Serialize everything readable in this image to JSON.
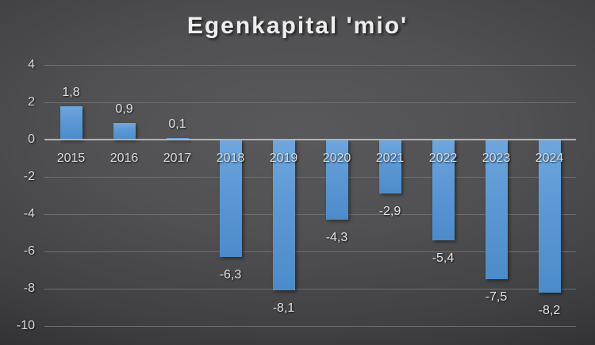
{
  "title": "Egenkapital 'mio'",
  "chart_data": {
    "type": "bar",
    "title": "Egenkapital 'mio'",
    "categories": [
      "2015",
      "2016",
      "2017",
      "2018",
      "2019",
      "2020",
      "2021",
      "2022",
      "2023",
      "2024"
    ],
    "values": [
      1.8,
      0.9,
      0.1,
      -6.3,
      -8.1,
      -4.3,
      -2.9,
      -5.4,
      -7.5,
      -8.2
    ],
    "value_labels": [
      "1,8",
      "0,9",
      "0,1",
      "-6,3",
      "-8,1",
      "-4,3",
      "-2,9",
      "-5,4",
      "-7,5",
      "-8,2"
    ],
    "xlabel": "",
    "ylabel": "",
    "ylim": [
      -10,
      4
    ],
    "yticks": [
      4,
      2,
      0,
      -2,
      -4,
      -6,
      -8,
      -10
    ],
    "ytick_labels": [
      "4",
      "2",
      "0",
      "-2",
      "-4",
      "-6",
      "-8",
      "-10"
    ],
    "grid": true,
    "legend": "none",
    "colors": {
      "bar_top": "#6fa6dd",
      "bar_bottom": "#4c8bca",
      "gridline": "#6e6e70",
      "zero_line": "#b3b3b3",
      "tick_text": "#d6d6d6",
      "label_text": "#e2e2e2",
      "title_text": "#ededed",
      "background_center": "#59595b",
      "background_edge": "#232325"
    }
  }
}
